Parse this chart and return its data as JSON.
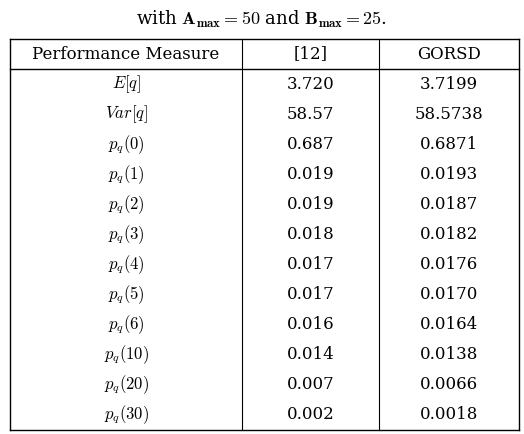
{
  "title_text": "with $\\mathbf{A_{max} = 50}$ and $\\mathbf{B_{max} = 25}$.",
  "col_headers": [
    "Performance Measure",
    "[12]",
    "GORSD"
  ],
  "rows": [
    [
      "$E[q]$",
      "3.720",
      "3.7199"
    ],
    [
      "$Var[q]$",
      "58.57",
      "58.5738"
    ],
    [
      "$p_q(0)$",
      "0.687",
      "0.6871"
    ],
    [
      "$p_q(1)$",
      "0.019",
      "0.0193"
    ],
    [
      "$p_q(2)$",
      "0.019",
      "0.0187"
    ],
    [
      "$p_q(3)$",
      "0.018",
      "0.0182"
    ],
    [
      "$p_q(4)$",
      "0.017",
      "0.0176"
    ],
    [
      "$p_q(5)$",
      "0.017",
      "0.0170"
    ],
    [
      "$p_q(6)$",
      "0.016",
      "0.0164"
    ],
    [
      "$p_q(10)$",
      "0.014",
      "0.0138"
    ],
    [
      "$p_q(20)$",
      "0.007",
      "0.0066"
    ],
    [
      "$p_q(30)$",
      "0.002",
      "0.0018"
    ]
  ],
  "figsize": [
    5.24,
    4.34
  ],
  "dpi": 100,
  "bg_color": "white",
  "header_fontsize": 12,
  "cell_fontsize": 12,
  "title_fontsize": 13
}
